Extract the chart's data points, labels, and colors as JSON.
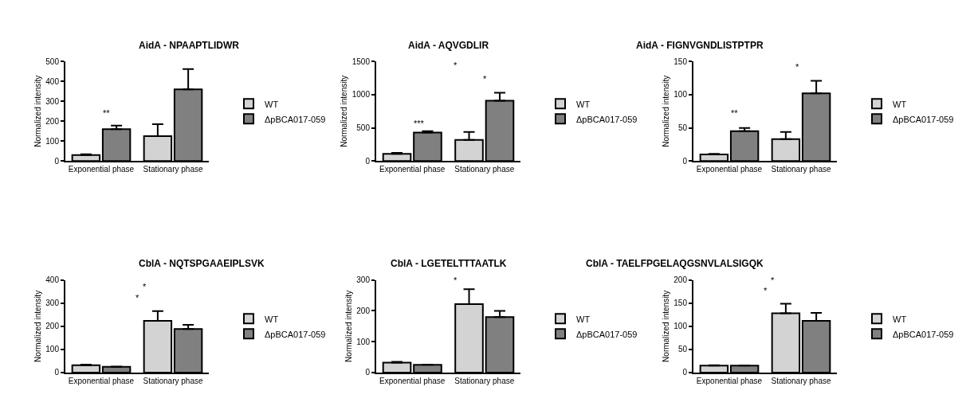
{
  "chart_data": [
    {
      "type": "bar",
      "title": "AidA - NPAAPTLIDWR",
      "ylabel": "Normalized intensity",
      "categories": [
        "Exponential phase",
        "Stationary phase"
      ],
      "ylim": [
        0,
        500
      ],
      "yticks": [
        0,
        100,
        200,
        300,
        400,
        500
      ],
      "legend": "right",
      "series": [
        {
          "name": "WT",
          "color": "#d3d3d3",
          "values": [
            30,
            125
          ],
          "errors": [
            [
              30,
              34
            ],
            [
              125,
              185
            ]
          ]
        },
        {
          "name": "ΔpBCA017-059",
          "color": "#808080",
          "values": [
            160,
            360
          ],
          "errors": [
            [
              160,
              178
            ],
            [
              360,
              462
            ]
          ]
        }
      ],
      "annotations": [
        "**"
      ]
    },
    {
      "type": "bar",
      "title": "AidA - AQVGDLIR",
      "ylabel": "Normalized intensity",
      "categories": [
        "Exponential phase",
        "Stationary phase"
      ],
      "ylim": [
        0,
        1500
      ],
      "yticks": [
        0,
        500,
        1000,
        1500
      ],
      "legend": "right",
      "series": [
        {
          "name": "WT",
          "color": "#d3d3d3",
          "values": [
            110,
            320
          ],
          "errors": [
            [
              110,
              125
            ],
            [
              320,
              440
            ]
          ]
        },
        {
          "name": "ΔpBCA017-059",
          "color": "#808080",
          "values": [
            430,
            910
          ],
          "errors": [
            [
              430,
              450
            ],
            [
              910,
              1030
            ]
          ]
        }
      ],
      "annotations": [
        "***",
        "*",
        "*"
      ]
    },
    {
      "type": "bar",
      "title": "AidA - FIGNVGNDLISTPTPR",
      "ylabel": "Normalized intensity",
      "categories": [
        "Exponential phase",
        "Stationary phase"
      ],
      "ylim": [
        0,
        150
      ],
      "yticks": [
        0,
        50,
        100,
        150
      ],
      "legend": "right",
      "series": [
        {
          "name": "WT",
          "color": "#d3d3d3",
          "values": [
            10,
            33
          ],
          "errors": [
            [
              10,
              11
            ],
            [
              33,
              44
            ]
          ]
        },
        {
          "name": "ΔpBCA017-059",
          "color": "#808080",
          "values": [
            45,
            102
          ],
          "errors": [
            [
              45,
              50
            ],
            [
              102,
              121
            ]
          ]
        }
      ],
      "annotations": [
        "**",
        "*"
      ]
    },
    {
      "type": "bar",
      "title": "CblA - NQTSPGAAEIPLSVK",
      "ylabel": "Normalized intensity",
      "categories": [
        "Exponential phase",
        "Stationary phase"
      ],
      "ylim": [
        0,
        400
      ],
      "yticks": [
        0,
        100,
        200,
        300,
        400
      ],
      "legend": "right",
      "series": [
        {
          "name": "WT",
          "color": "#d3d3d3",
          "values": [
            32,
            224
          ],
          "errors": [
            [
              32,
              34
            ],
            [
              224,
              266
            ]
          ]
        },
        {
          "name": "ΔpBCA017-059",
          "color": "#808080",
          "values": [
            25,
            188
          ],
          "errors": [
            [
              25,
              26
            ],
            [
              188,
              206
            ]
          ]
        }
      ],
      "annotations": [
        "*",
        "*"
      ]
    },
    {
      "type": "bar",
      "title": "CblA - LGETELTTTAATLK",
      "ylabel": "Normalized intensity",
      "categories": [
        "Exponential phase",
        "Stationary phase"
      ],
      "ylim": [
        0,
        300
      ],
      "yticks": [
        0,
        100,
        200,
        300
      ],
      "legend": "right",
      "series": [
        {
          "name": "WT",
          "color": "#d3d3d3",
          "values": [
            32,
            222
          ],
          "errors": [
            [
              32,
              35
            ],
            [
              222,
              270
            ]
          ]
        },
        {
          "name": "ΔpBCA017-059",
          "color": "#808080",
          "values": [
            25,
            180
          ],
          "errors": [
            [
              25,
              26
            ],
            [
              180,
              200
            ]
          ]
        }
      ],
      "annotations": [
        "*"
      ]
    },
    {
      "type": "bar",
      "title": "CblA - TAELFPGELAQGSNVLALSIGQK",
      "ylabel": "Normalized intensity",
      "categories": [
        "Exponential phase",
        "Stationary phase"
      ],
      "ylim": [
        0,
        200
      ],
      "yticks": [
        0,
        50,
        100,
        150,
        200
      ],
      "legend": "right",
      "series": [
        {
          "name": "WT",
          "color": "#d3d3d3",
          "values": [
            15,
            128
          ],
          "errors": [
            [
              15,
              16
            ],
            [
              128,
              149
            ]
          ]
        },
        {
          "name": "ΔpBCA017-059",
          "color": "#808080",
          "values": [
            15,
            112
          ],
          "errors": [
            [
              15,
              15.5
            ],
            [
              112,
              129
            ]
          ]
        }
      ],
      "annotations": [
        "*",
        "*"
      ]
    }
  ]
}
